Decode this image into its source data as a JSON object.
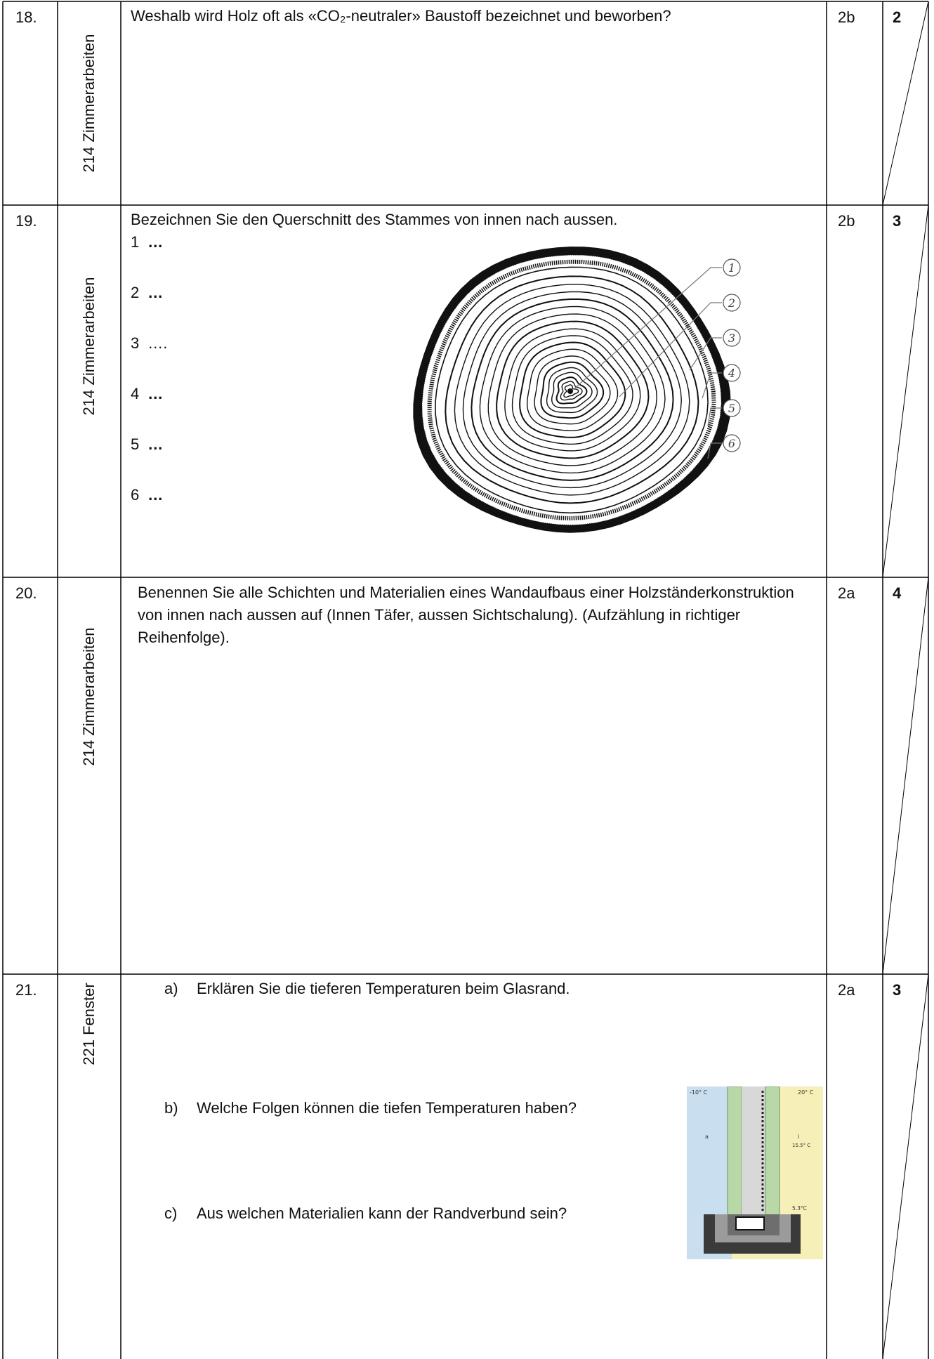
{
  "rows": [
    {
      "number": "18.",
      "category": "214 Zimmerarbeiten",
      "question": "Weshalb wird Holz oft als «CO₂-neutraler» Baustoff bezeichnet und beworben?",
      "level": "2b",
      "points": "2"
    },
    {
      "number": "19.",
      "category": "214 Zimmerarbeiten",
      "question": "Bezeichnen Sie den Querschnitt des Stammes von innen nach aussen.",
      "level": "2b",
      "points": "3",
      "answers": [
        {
          "n": "1",
          "text": "…"
        },
        {
          "n": "2",
          "text": "…"
        },
        {
          "n": "3",
          "text": "…."
        },
        {
          "n": "4",
          "text": "…"
        },
        {
          "n": "5",
          "text": "…"
        },
        {
          "n": "6",
          "text": "…"
        }
      ],
      "figure_labels": [
        "1",
        "2",
        "3",
        "4",
        "5",
        "6"
      ]
    },
    {
      "number": "20.",
      "category": "214 Zimmerarbeiten",
      "question": "Benennen Sie alle Schichten und Materialien eines Wandaufbaus einer Holzständerkonstruktion von innen nach aussen auf (Innen Täfer, aussen Sichtschalung). (Aufzählung in richtiger Reihenfolge).",
      "level": "2a",
      "points": "4"
    },
    {
      "number": "21.",
      "category": "221 Fenster",
      "level": "2a",
      "points": "3",
      "subquestions": [
        {
          "label": "a)",
          "text": "Erklären Sie die tieferen Temperaturen beim Glasrand."
        },
        {
          "label": "b)",
          "text": "Welche Folgen können die tiefen  Temperaturen haben?"
        },
        {
          "label": "c)",
          "text": "Aus welchen Materialien kann der Randverbund sein?"
        }
      ],
      "figure": {
        "outside_temp": "-10° C",
        "inside_temp": "20° C",
        "outside_label": "a",
        "inside_label": "i",
        "surface_temp_pane": "15.5° C",
        "surface_temp_edge": "5.3°C",
        "colors": {
          "outside": "#c9dff0",
          "inside": "#f6efb8",
          "frame": "#3a3a3a"
        }
      }
    }
  ]
}
